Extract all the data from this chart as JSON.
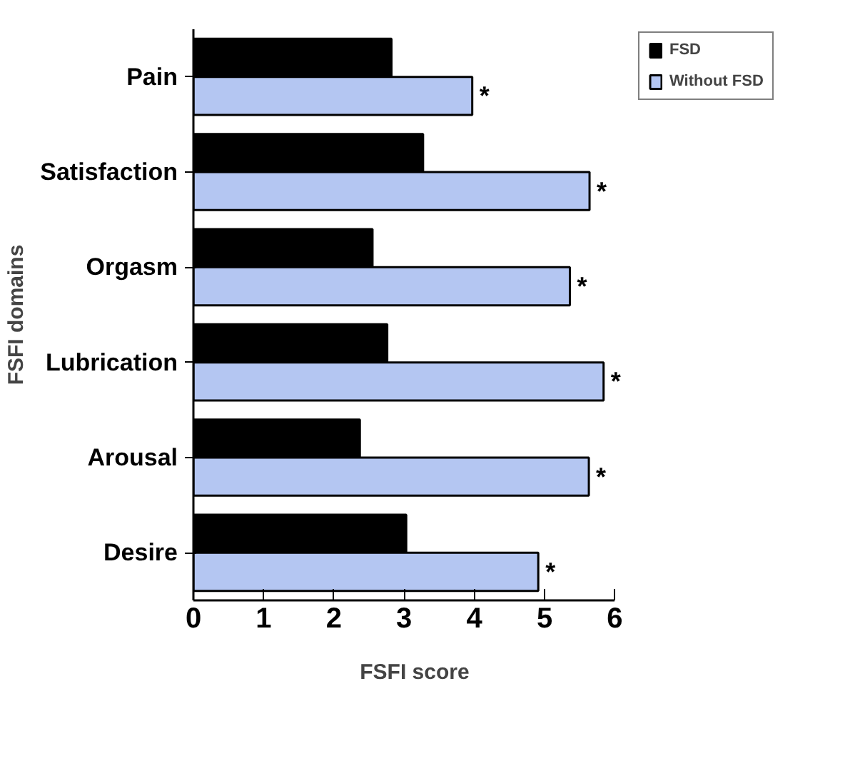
{
  "chart_data": {
    "type": "bar",
    "orientation": "horizontal",
    "xlabel": "FSFI score",
    "ylabel": "FSFI domains",
    "categories": [
      "Pain",
      "Satisfaction",
      "Orgasm",
      "Lubrication",
      "Arousal",
      "Desire"
    ],
    "series": [
      {
        "name": "FSD",
        "color": "#000000",
        "values": [
          2.82,
          3.27,
          2.55,
          2.76,
          2.37,
          3.03
        ]
      },
      {
        "name": "Without FSD",
        "color": "#b4c6f2",
        "values": [
          3.97,
          5.64,
          5.36,
          5.84,
          5.63,
          4.91
        ]
      }
    ],
    "xlim": [
      0,
      6
    ],
    "xticks": [
      0,
      1,
      2,
      3,
      4,
      5,
      6
    ],
    "grid": false,
    "legend": "right",
    "annotations": [
      {
        "text": "*",
        "x": 3.97,
        "y": "Pain"
      },
      {
        "text": "*",
        "x": 5.64,
        "y": "Satisfaction"
      },
      {
        "text": "*",
        "x": 5.36,
        "y": "Orgasm"
      },
      {
        "text": "*",
        "x": 5.84,
        "y": "Lubrication"
      },
      {
        "text": "*",
        "x": 5.63,
        "y": "Arousal"
      },
      {
        "text": "*",
        "x": 4.91,
        "y": "Desire"
      }
    ]
  }
}
